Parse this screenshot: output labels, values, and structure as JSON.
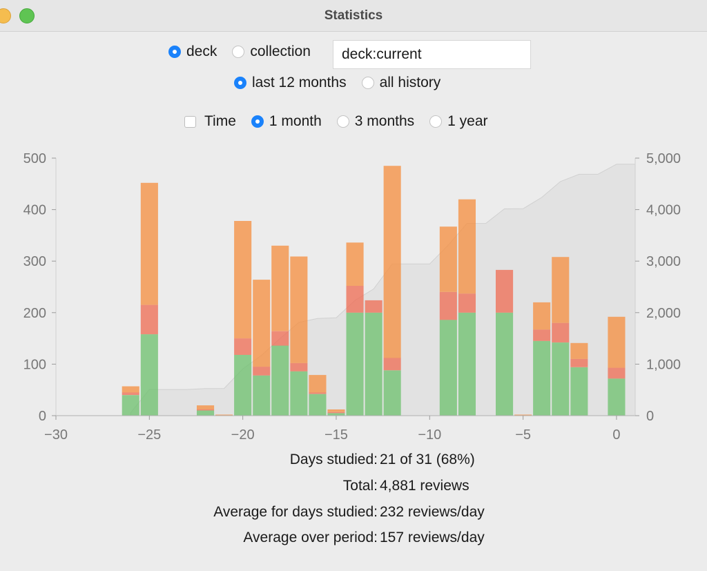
{
  "window": {
    "title": "Statistics"
  },
  "scope": {
    "options": [
      {
        "label": "deck",
        "selected": true
      },
      {
        "label": "collection",
        "selected": false
      }
    ],
    "search_value": "deck:current"
  },
  "history": {
    "options": [
      {
        "label": "last 12 months",
        "selected": true
      },
      {
        "label": "all history",
        "selected": false
      }
    ]
  },
  "period": {
    "time_checkbox": {
      "label": "Time",
      "checked": false
    },
    "options": [
      {
        "label": "1 month",
        "selected": true
      },
      {
        "label": "3 months",
        "selected": false
      },
      {
        "label": "1 year",
        "selected": false
      }
    ]
  },
  "colors": {
    "learn": "#f58e3e",
    "relearn": "#ef6b52",
    "young": "#6cc06c",
    "mature": "#3a9e3a",
    "cumulative": "#d0d0d0",
    "accent": "#1a82fb"
  },
  "chart_data": {
    "type": "bar",
    "stacked": true,
    "x": [
      -26,
      -25,
      -22,
      -21,
      -20,
      -19,
      -18,
      -17,
      -16,
      -15,
      -14,
      -13,
      -12,
      -11,
      -9,
      -8,
      -6,
      -5,
      -4,
      -3,
      -2,
      0
    ],
    "series": [
      {
        "values": [
          40,
          158,
          10,
          0,
          118,
          78,
          136,
          86,
          42,
          5,
          200,
          200,
          88,
          0,
          186,
          200,
          200,
          0,
          145,
          142,
          94,
          72
        ]
      },
      {
        "values": [
          5,
          57,
          2,
          0,
          32,
          17,
          28,
          16,
          3,
          2,
          52,
          24,
          24,
          0,
          54,
          37,
          83,
          0,
          22,
          38,
          16,
          21
        ]
      },
      {
        "values": [
          12,
          237,
          8,
          2,
          228,
          169,
          166,
          207,
          34,
          5,
          84,
          0,
          373,
          0,
          127,
          183,
          0,
          2,
          53,
          128,
          31,
          99
        ]
      }
    ],
    "cumulative": {
      "x": [
        -26,
        -25,
        -24,
        -23,
        -22,
        -21,
        -20,
        -19,
        -18,
        -17,
        -16,
        -15,
        -14,
        -13,
        -12,
        -11,
        -10,
        -9,
        -8,
        -7,
        -6,
        -5,
        -4,
        -3,
        -2,
        -1,
        0,
        1
      ],
      "y": [
        57,
        508,
        508,
        508,
        527,
        528,
        906,
        1170,
        1500,
        1809,
        1888,
        1900,
        2236,
        2460,
        2945,
        2945,
        2945,
        3312,
        3732,
        3732,
        4015,
        4017,
        4237,
        4545,
        4686,
        4686,
        4881,
        4881
      ]
    },
    "xlim": [
      -30,
      1
    ],
    "ylim": [
      0,
      500
    ],
    "y2lim": [
      0,
      5000
    ],
    "xticks": [
      "−30",
      "−25",
      "−20",
      "−15",
      "−10",
      "−5",
      "0"
    ],
    "yticks": [
      "0",
      "100",
      "200",
      "300",
      "400",
      "500"
    ],
    "y2ticks": [
      "0",
      "1,000",
      "2,000",
      "3,000",
      "4,000",
      "5,000"
    ],
    "xtick_values": [
      -30,
      -25,
      -20,
      -15,
      -10,
      -5,
      0
    ],
    "ytick_values": [
      0,
      100,
      200,
      300,
      400,
      500
    ],
    "grid": false
  },
  "stats": [
    {
      "label": "Days studied:",
      "value": "21 of 31 (68%)"
    },
    {
      "label": "Total:",
      "value": "4,881 reviews"
    },
    {
      "label": "Average for days studied:",
      "value": "232 reviews/day"
    },
    {
      "label": "Average over period:",
      "value": "157 reviews/day"
    }
  ]
}
